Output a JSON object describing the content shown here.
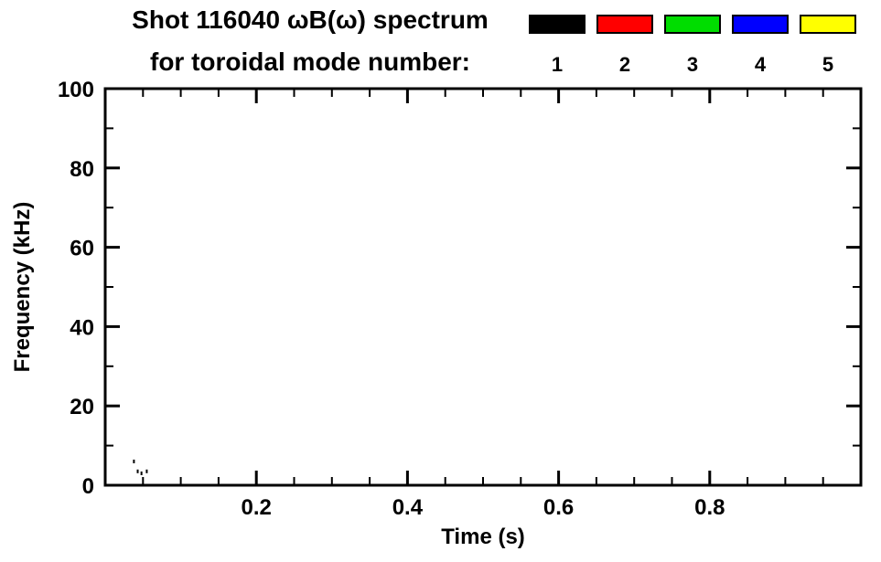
{
  "title": {
    "line1": "Shot 116040 ωB(ω) spectrum",
    "line2": "for toroidal mode number:"
  },
  "legend": {
    "items": [
      {
        "label": "1",
        "color": "#000000"
      },
      {
        "label": "2",
        "color": "#ff0000"
      },
      {
        "label": "3",
        "color": "#00dd00"
      },
      {
        "label": "4",
        "color": "#0000ff"
      },
      {
        "label": "5",
        "color": "#ffff00"
      }
    ]
  },
  "chart_data": {
    "type": "scatter",
    "title": "Shot 116040 ωB(ω) spectrum for toroidal mode number: 1 2 3 4 5",
    "xlabel": "Time (s)",
    "ylabel": "Frequency (kHz)",
    "xlim": [
      0.0,
      1.0
    ],
    "ylim": [
      0,
      100
    ],
    "xticks": [
      0.2,
      0.4,
      0.6,
      0.8
    ],
    "yticks": [
      0,
      20,
      40,
      60,
      80,
      100
    ],
    "x_minor_step": 0.05,
    "y_minor_step": 10,
    "grid": false,
    "legend_position": "top-right",
    "series": [
      {
        "name": "n=1",
        "color": "#000000",
        "points": [
          [
            0.038,
            6.0
          ],
          [
            0.043,
            3.5
          ],
          [
            0.048,
            3.0
          ],
          [
            0.055,
            3.5
          ]
        ]
      },
      {
        "name": "n=2",
        "color": "#ff0000",
        "points": []
      },
      {
        "name": "n=3",
        "color": "#00dd00",
        "points": []
      },
      {
        "name": "n=4",
        "color": "#0000ff",
        "points": []
      },
      {
        "name": "n=5",
        "color": "#ffff00",
        "points": []
      }
    ]
  }
}
